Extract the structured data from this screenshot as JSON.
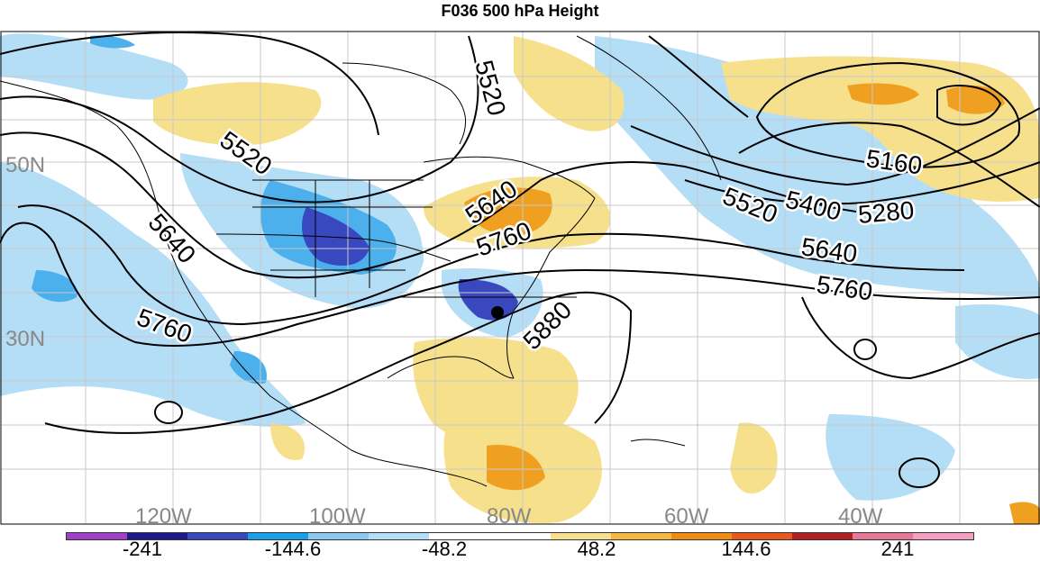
{
  "title": "F036 500 hPa Height",
  "latitude_labels": [
    "50N",
    "30N"
  ],
  "longitude_labels": [
    "120W",
    "100W",
    "80W",
    "60W",
    "40W"
  ],
  "contour_labels": [
    "5520",
    "5520",
    "5640",
    "5760",
    "5640",
    "5760",
    "5880",
    "5160",
    "5280",
    "5400",
    "5520",
    "5640",
    "5760"
  ],
  "colorbar": {
    "colors": [
      "#a040c8",
      "#1a1a8a",
      "#3a48c0",
      "#1aa0e8",
      "#8cc8f0",
      "#b4ddf6",
      "#ffffff",
      "#ffffff",
      "#f6e08c",
      "#f4b840",
      "#f08c14",
      "#e8581a",
      "#b02020",
      "#e87898",
      "#f4a0c0"
    ],
    "labels": [
      "-241",
      "-144.6",
      "-48.2",
      "48.2",
      "144.6",
      "241"
    ]
  },
  "colors": {
    "negative_light": "#b4ddf6",
    "negative_mid": "#4cb0ec",
    "negative_strong": "#3a48c0",
    "positive_light": "#f6e08c",
    "positive_strong": "#f0a020",
    "contour": "#000000",
    "grid": "#c8c8c8"
  }
}
